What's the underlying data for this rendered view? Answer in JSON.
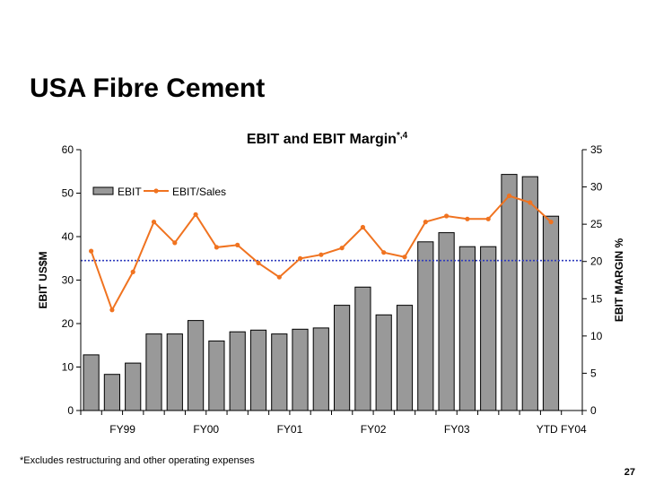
{
  "slide": {
    "title": "USA Fibre Cement",
    "footnote": "*Excludes restructuring and other operating expenses",
    "page_number": "27"
  },
  "chart_data": {
    "type": "bar",
    "title": "EBIT and EBIT Margin",
    "title_superscript": "*,4",
    "ylabel": "EBIT US$M",
    "y2label": "EBIT MARGIN %",
    "ylim": [
      0,
      60
    ],
    "y2lim": [
      0,
      35
    ],
    "yticks": [
      0,
      10,
      20,
      30,
      40,
      50,
      60
    ],
    "y2ticks": [
      0,
      5,
      10,
      15,
      20,
      25,
      30,
      35
    ],
    "grid": false,
    "legend_position": "top-left",
    "category_count": 24,
    "x_tick_labels": [
      {
        "label": "FY99",
        "index": 1.5
      },
      {
        "label": "FY00",
        "index": 5.5
      },
      {
        "label": "FY01",
        "index": 9.5
      },
      {
        "label": "FY02",
        "index": 13.5
      },
      {
        "label": "FY03",
        "index": 17.5
      },
      {
        "label": "YTD FY04",
        "index": 22.5
      }
    ],
    "series": [
      {
        "name": "EBIT",
        "kind": "bar",
        "axis": "left",
        "color": "#999999",
        "values": [
          12.8,
          8.3,
          10.9,
          17.6,
          17.6,
          20.7,
          16.0,
          18.1,
          18.5,
          17.6,
          18.7,
          19.0,
          24.2,
          28.4,
          22.0,
          24.2,
          38.8,
          40.9,
          37.7,
          37.7,
          54.3,
          53.8,
          44.7
        ]
      },
      {
        "name": "EBIT/Sales",
        "kind": "line",
        "axis": "right",
        "color": "#f07320",
        "values": [
          21.4,
          13.5,
          18.6,
          25.3,
          22.5,
          26.3,
          21.9,
          22.2,
          19.8,
          17.9,
          20.4,
          20.9,
          21.8,
          24.6,
          21.2,
          20.6,
          25.3,
          26.1,
          25.7,
          25.7,
          28.8,
          27.9,
          25.3
        ]
      }
    ],
    "reference_line": {
      "value": 34.5,
      "axis": "left",
      "color": "#2e3bbd",
      "style": "dotted"
    }
  }
}
